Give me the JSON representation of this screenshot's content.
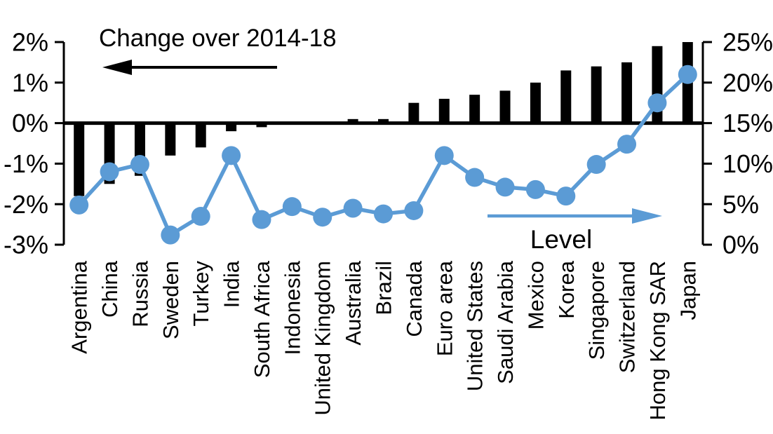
{
  "chart_data": {
    "type": "bar+line combo",
    "title": "",
    "categories": [
      "Argentina",
      "China",
      "Russia",
      "Sweden",
      "Turkey",
      "India",
      "South Africa",
      "Indonesia",
      "United Kingdom",
      "Australia",
      "Brazil",
      "Canada",
      "Euro area",
      "United States",
      "Saudi Arabia",
      "Mexico",
      "Korea",
      "Singapore",
      "Switzerland",
      "Hong Kong SAR",
      "Japan"
    ],
    "series": [
      {
        "name": "Change over 2014-18",
        "type": "bar",
        "axis": "left",
        "color": "#000000",
        "values": [
          -1.8,
          -1.5,
          -1.3,
          -0.8,
          -0.6,
          -0.2,
          -0.1,
          0.0,
          0.0,
          0.1,
          0.1,
          0.5,
          0.6,
          0.7,
          0.8,
          1.0,
          1.3,
          1.4,
          1.5,
          1.9,
          2.0
        ]
      },
      {
        "name": "Level",
        "type": "line",
        "axis": "right",
        "color": "#5B9BD5",
        "values": [
          4.9,
          9.0,
          9.9,
          1.2,
          3.5,
          11.0,
          3.1,
          4.7,
          3.4,
          4.5,
          3.8,
          4.2,
          11.0,
          8.3,
          7.1,
          6.8,
          6.0,
          9.9,
          12.4,
          17.5,
          21.0
        ]
      }
    ],
    "left_axis": {
      "tick_labels": [
        "2%",
        "1%",
        "0%",
        "-1%",
        "-2%",
        "-3%"
      ],
      "tick_values": [
        2,
        1,
        0,
        -1,
        -2,
        -3
      ],
      "min": -3,
      "max": 2
    },
    "right_axis": {
      "tick_labels": [
        "25%",
        "20%",
        "15%",
        "10%",
        "5%",
        "0%"
      ],
      "tick_values": [
        25,
        20,
        15,
        10,
        5,
        0
      ],
      "min": 0,
      "max": 25
    },
    "annotations": {
      "left_series_label": "Change over 2014-18",
      "right_series_label": "Level",
      "left_arrow_direction": "left",
      "right_arrow_direction": "right"
    },
    "layout": {
      "grid": false,
      "zero_line": true,
      "x_labels_rotated_90": true,
      "background": "#ffffff"
    }
  }
}
